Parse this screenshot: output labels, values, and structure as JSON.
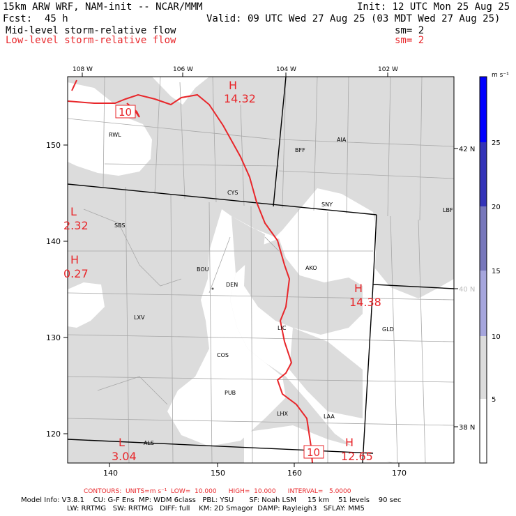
{
  "header": {
    "model_title": "15km ARW WRF, NAM-init -- NCAR/MMM",
    "init": "Init: 12 UTC Mon 25 Aug 25",
    "fcst_label": "Fcst:",
    "fcst_value": "45 h",
    "valid": "Valid: 09 UTC Wed 27 Aug 25 (03 MDT Wed 27 Aug 25)",
    "field1_name": "Mid-level storm-relative flow",
    "field1_sm": "sm= 2",
    "field2_name": "Low-level storm-relative flow",
    "field2_sm": "sm= 2"
  },
  "axes": {
    "top_lon": [
      "108 W",
      "106 W",
      "104 W",
      "102 W"
    ],
    "right_lat": [
      "42 N",
      "40 N",
      "38 N"
    ],
    "left_y": [
      "150",
      "140",
      "130",
      "120"
    ],
    "bottom_x": [
      "140",
      "150",
      "160",
      "170"
    ]
  },
  "stations": [
    "RWL",
    "BFF",
    "AIA",
    "CYS",
    "SNY",
    "LBF",
    "SBS",
    "BOU",
    "DEN",
    "AKO",
    "LXV",
    "LIC",
    "GLD",
    "COS",
    "PUB",
    "LHX",
    "LAA",
    "ALS"
  ],
  "contour_labels": [
    "10",
    "10"
  ],
  "extrema": [
    {
      "letter": "H",
      "value": "14.32"
    },
    {
      "letter": "L",
      "value": "2.32"
    },
    {
      "letter": "H",
      "value": "0.27"
    },
    {
      "letter": "H",
      "value": "14.38"
    },
    {
      "letter": "L",
      "value": "3.04"
    },
    {
      "letter": "H",
      "value": "12.65"
    }
  ],
  "colorbar": {
    "unit": "m s⁻¹",
    "ticks": [
      "25",
      "20",
      "15",
      "10",
      "5"
    ],
    "colors": [
      "#0000ff",
      "#3333b8",
      "#7777bb",
      "#a6a6dd",
      "#dcdcdc",
      "#ffffff"
    ]
  },
  "footer": {
    "contours": "CONTOURS:  UNITS=m s⁻¹  LOW=  10.000      HIGH=  10.000      INTERVAL=   5.0000",
    "model_info1": "Model Info: V3.8.1    CU: G-F Ens  MP: WDM 6class   PBL: YSU       SF: Noah LSM     15 km    51 levels    90 sec",
    "model_info2": "LW: RRTMG   SW: RRTMG   DIFF: full    KM: 2D Smagor  DAMP: Rayleigh3   SFLAY: MM5"
  }
}
